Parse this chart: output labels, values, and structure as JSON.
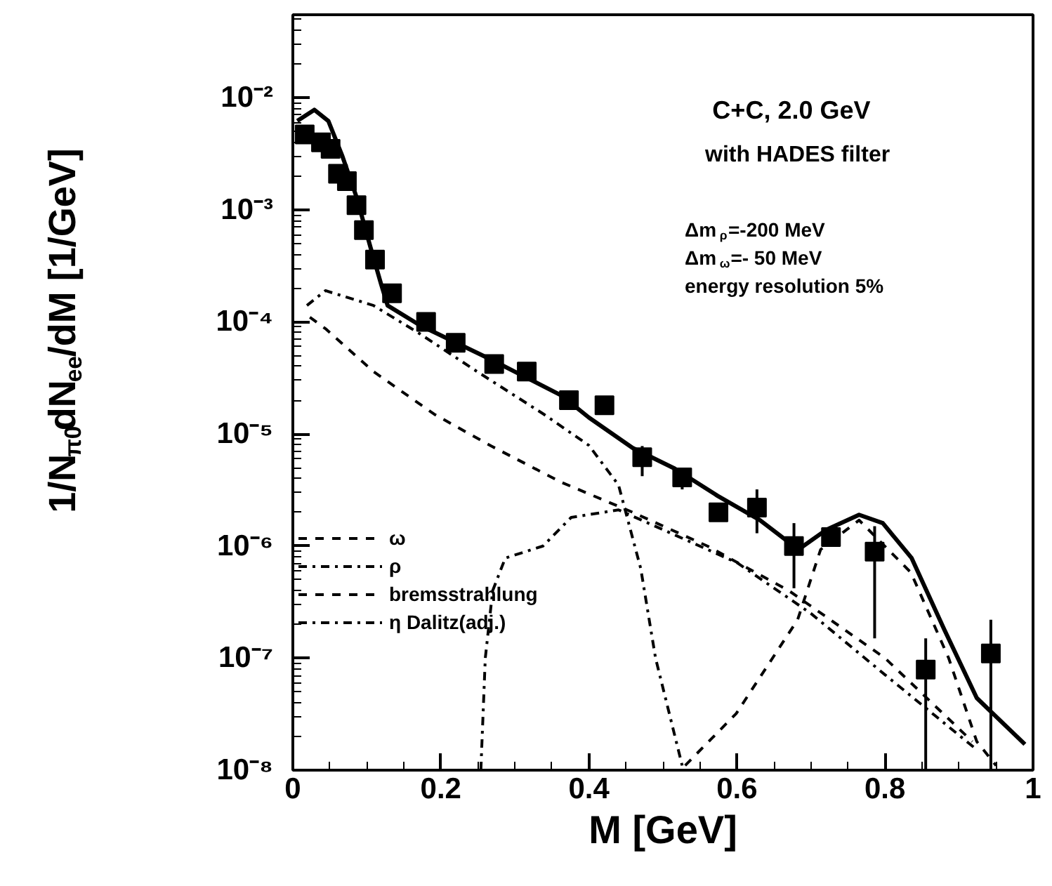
{
  "chart_data": {
    "type": "line",
    "xlabel": "M [GeV]",
    "ylabel": "1/N$_{π0}$dN$_{ee}$/dM [1/GeV]",
    "annotations": [
      "C+C, 2.0 GeV",
      "with HADES filter",
      "Δm$_{ρ}$=-200 MeV",
      "Δm$_{ω}$=- 50 MeV",
      "energy resolution 5%"
    ],
    "xlim": [
      0,
      1
    ],
    "xticks": [
      0,
      0.2,
      0.4,
      0.6,
      0.8,
      1
    ],
    "ylim": [
      1e-08,
      0.055
    ],
    "yticks": [
      {
        "value": 1e-08,
        "label": "10⁻⁸"
      },
      {
        "value": 1e-07,
        "label": "10⁻⁷"
      },
      {
        "value": 1e-06,
        "label": "10⁻⁶"
      },
      {
        "value": 1e-05,
        "label": "10⁻⁵"
      },
      {
        "value": 0.0001,
        "label": "10⁻⁴"
      },
      {
        "value": 0.001,
        "label": "10⁻³"
      },
      {
        "value": 0.01,
        "label": "10⁻²"
      }
    ],
    "log": "y",
    "grid": false,
    "legend": "left",
    "series": [
      {
        "type": "scatter",
        "marker": "square",
        "color": "#000000",
        "x": [
          0.016,
          0.038,
          0.051,
          0.061,
          0.073,
          0.086,
          0.096,
          0.111,
          0.134,
          0.18,
          0.22,
          0.272,
          0.316,
          0.373,
          0.421,
          0.472,
          0.526,
          0.575,
          0.627,
          0.677,
          0.727,
          0.786,
          0.855,
          0.943
        ],
        "values": [
          0.0047,
          0.004,
          0.0035,
          0.0021,
          0.0018,
          0.0011,
          0.00066,
          0.00036,
          0.00018,
          0.0001,
          6.5e-05,
          4.2e-05,
          3.6e-05,
          2e-05,
          1.8e-05,
          6.2e-06,
          4.1e-06,
          2e-06,
          2.2e-06,
          1e-06,
          1.2e-06,
          8.9e-07,
          7.9e-08,
          1.1e-07
        ],
        "errors": [
          null,
          null,
          null,
          null,
          null,
          null,
          null,
          null,
          null,
          null,
          null,
          null,
          null,
          null,
          null,
          [
            4.2e-06,
            7.8e-06
          ],
          [
            3.2e-06,
            4.9e-06
          ],
          null,
          [
            1.3e-06,
            3.2e-06
          ],
          [
            4.2e-07,
            1.6e-06
          ],
          null,
          [
            1.5e-07,
            1.5e-06
          ],
          [
            1e-08,
            1.5e-07
          ],
          [
            1e-08,
            2.2e-07
          ]
        ]
      },
      {
        "type": "line",
        "line_style": "solid",
        "color": "#000000",
        "x": [
          0.006,
          0.029,
          0.048,
          0.067,
          0.086,
          0.105,
          0.119,
          0.128,
          0.172,
          0.268,
          0.363,
          0.4,
          0.459,
          0.516,
          0.574,
          0.631,
          0.683,
          0.721,
          0.765,
          0.797,
          0.836,
          0.88,
          0.924,
          0.989
        ],
        "values": [
          0.0062,
          0.0078,
          0.0062,
          0.003,
          0.0013,
          0.00046,
          0.00022,
          0.00014,
          9.3e-05,
          4.6e-05,
          2.2e-05,
          1.4e-05,
          7.5e-06,
          4.9e-06,
          2.8e-06,
          1.7e-06,
          9.3e-07,
          1.4e-06,
          1.9e-06,
          1.6e-06,
          7.8e-07,
          1.8e-07,
          4.4e-08,
          1.7e-08
        ]
      },
      {
        "type": "line",
        "name": "ω",
        "line_style": "dashed",
        "color": "#000000",
        "x": [
          0.53,
          0.599,
          0.682,
          0.713,
          0.765,
          0.835,
          0.886,
          0.924,
          0.95
        ],
        "values": [
          1.1e-08,
          3.2e-08,
          2.2e-07,
          9.3e-07,
          1.7e-06,
          5.8e-07,
          1e-07,
          1.8e-08,
          1.1e-08
        ]
      },
      {
        "type": "line",
        "name": "ρ",
        "line_style": "dashdot",
        "color": "#000000",
        "x": [
          0.254,
          0.26,
          0.27,
          0.287,
          0.338,
          0.376,
          0.44,
          0.5,
          0.6,
          0.7,
          0.8,
          0.92
        ],
        "values": [
          1e-08,
          1e-07,
          4e-07,
          7.8e-07,
          1e-06,
          1.8e-06,
          2.1e-06,
          1.4e-06,
          7.1e-07,
          2.5e-07,
          7.1e-08,
          1.6e-08
        ]
      },
      {
        "type": "line",
        "name": "bremsstrahlung",
        "line_style": "dashed",
        "color": "#000000",
        "x": [
          0.023,
          0.044,
          0.109,
          0.191,
          0.268,
          0.363,
          0.459,
          0.56,
          0.67,
          0.8,
          0.918
        ],
        "values": [
          0.00011,
          8.7e-05,
          3.6e-05,
          1.5e-05,
          7.8e-06,
          3.7e-06,
          2e-06,
          1e-06,
          4e-07,
          1e-07,
          1.8e-08
        ]
      },
      {
        "type": "line",
        "name": "η Dalitz(adj.)",
        "line_style": "dashdot",
        "color": "#000000",
        "x": [
          0.019,
          0.044,
          0.109,
          0.172,
          0.249,
          0.339,
          0.4,
          0.44,
          0.47,
          0.49,
          0.526
        ],
        "values": [
          0.00014,
          0.00019,
          0.00014,
          7.8e-05,
          3.6e-05,
          1.5e-05,
          7.9e-06,
          3.5e-06,
          6.3e-07,
          1e-07,
          1.1e-08
        ]
      }
    ]
  }
}
